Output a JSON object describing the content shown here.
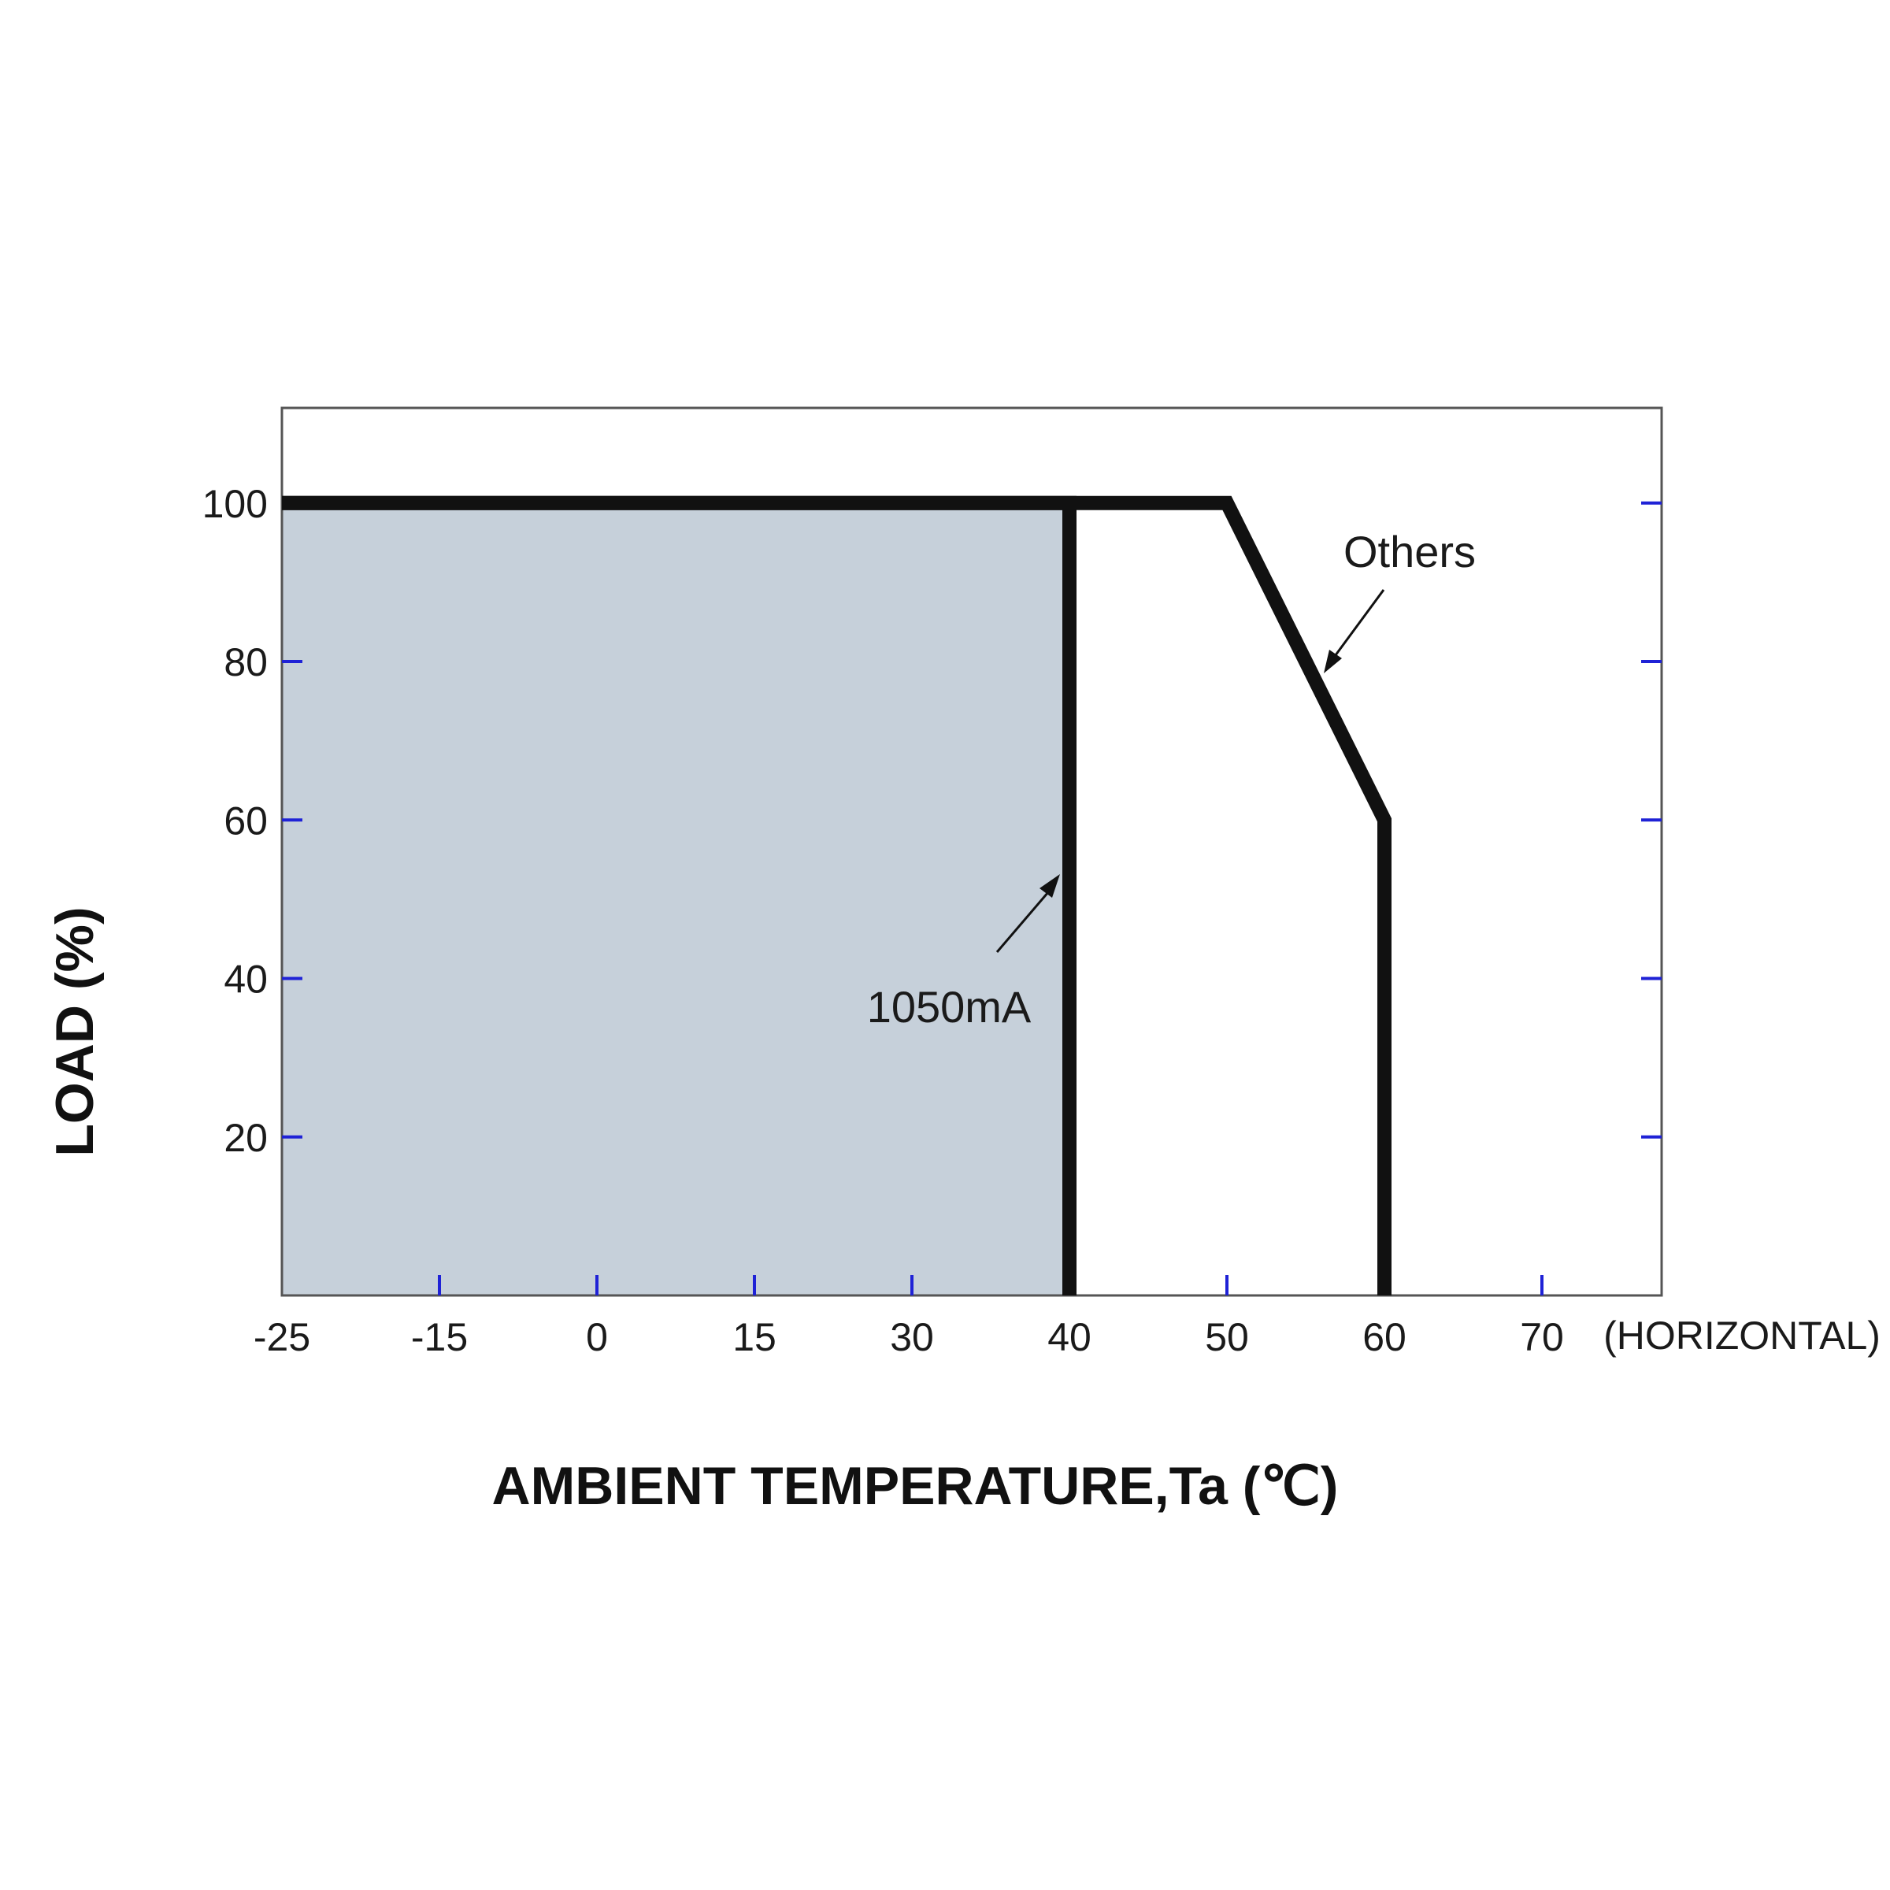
{
  "chart_data": {
    "type": "line",
    "title": "",
    "xlabel": "AMBIENT TEMPERATURE,Ta (℃)",
    "ylabel": "LOAD (%)",
    "x_orientation_label": "(HORIZONTAL)",
    "x_ticks": [
      "-25",
      "-15",
      "0",
      "15",
      "30",
      "40",
      "50",
      "60",
      "70"
    ],
    "y_ticks": [
      20,
      40,
      60,
      80,
      100
    ],
    "ylim": [
      0,
      112
    ],
    "grid": false,
    "series": [
      {
        "name": "1050mA",
        "points": [
          [
            "-25",
            100
          ],
          [
            "40",
            100
          ],
          [
            "40",
            0
          ]
        ],
        "fill_under": true
      },
      {
        "name": "Others",
        "points": [
          [
            "-25",
            100
          ],
          [
            "50",
            100
          ],
          [
            "60",
            60
          ],
          [
            "60",
            0
          ]
        ],
        "fill_under": false
      }
    ],
    "annotations": [
      "1050mA",
      "Others"
    ],
    "colors": {
      "line": "#111111",
      "fill": "#c6d0da",
      "tick_marks": "#1f22d6",
      "frame": "#555555"
    }
  }
}
